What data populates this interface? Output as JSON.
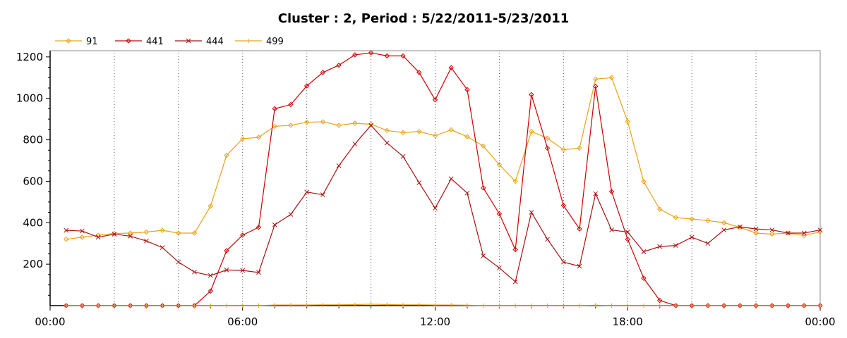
{
  "chart_data": {
    "type": "line",
    "title": "Cluster : 2, Period : 5/22/2011-5/23/2011",
    "xlabel": "",
    "ylabel": "",
    "xlim": [
      0,
      24
    ],
    "ylim": [
      0,
      1230
    ],
    "x_tick_labels": [
      "00:00",
      "06:00",
      "12:00",
      "18:00",
      "00:00"
    ],
    "y_tick_values": [
      200,
      400,
      600,
      800,
      1000,
      1200
    ],
    "y_tick_labels": [
      "200",
      "400",
      "600",
      "800",
      "1000",
      "1200"
    ],
    "grid": "vertical dotted lines every 2 hours",
    "legend_position": "top-left",
    "x": [
      0.5,
      1.0,
      1.5,
      2.0,
      2.5,
      3.0,
      3.5,
      4.0,
      4.5,
      5.0,
      5.5,
      6.0,
      6.5,
      7.0,
      7.5,
      8.0,
      8.5,
      9.0,
      9.5,
      10.0,
      10.5,
      11.0,
      11.5,
      12.0,
      12.5,
      13.0,
      13.5,
      14.0,
      14.5,
      15.0,
      15.5,
      16.0,
      16.5,
      17.0,
      17.5,
      18.0,
      18.5,
      19.0,
      19.5,
      20.0,
      20.5,
      21.0,
      21.5,
      22.0,
      22.5,
      23.0,
      23.5,
      24.0
    ],
    "series": [
      {
        "name": "91",
        "color": "#e8a317",
        "marker": "diamond",
        "values": [
          320,
          330,
          340,
          348,
          350,
          355,
          363,
          350,
          350,
          480,
          725,
          805,
          812,
          865,
          870,
          885,
          887,
          870,
          880,
          875,
          845,
          835,
          840,
          820,
          848,
          815,
          770,
          680,
          600,
          840,
          808,
          752,
          760,
          1093,
          1100,
          888,
          598,
          465,
          425,
          418,
          410,
          400,
          378,
          350,
          345,
          350,
          338,
          356
        ]
      },
      {
        "name": "441",
        "color": "#cc0000",
        "marker": "diamond",
        "values": [
          0,
          0,
          0,
          0,
          0,
          0,
          0,
          0,
          0,
          70,
          265,
          340,
          378,
          950,
          970,
          1060,
          1125,
          1160,
          1210,
          1220,
          1205,
          1205,
          1125,
          993,
          1148,
          1042,
          568,
          443,
          270,
          1018,
          760,
          483,
          370,
          1058,
          550,
          320,
          132,
          25,
          0,
          0,
          0,
          0,
          0,
          0,
          0,
          0,
          0,
          0
        ]
      },
      {
        "name": "444",
        "color": "#aa1111",
        "marker": "x",
        "values": [
          363,
          360,
          330,
          345,
          335,
          312,
          280,
          210,
          162,
          145,
          172,
          170,
          160,
          390,
          440,
          548,
          535,
          675,
          780,
          870,
          785,
          720,
          593,
          470,
          612,
          543,
          240,
          182,
          115,
          450,
          320,
          210,
          190,
          540,
          365,
          355,
          260,
          285,
          290,
          330,
          300,
          365,
          380,
          370,
          365,
          350,
          350,
          365
        ]
      },
      {
        "name": "499",
        "color": "#e8a317",
        "marker": "plus",
        "values": [
          0,
          0,
          0,
          0,
          0,
          0,
          0,
          0,
          0,
          0,
          0,
          0,
          0,
          3,
          3,
          3,
          4,
          4,
          5,
          7,
          5,
          4,
          4,
          3,
          3,
          2,
          0,
          0,
          0,
          0,
          0,
          0,
          0,
          2,
          0,
          0,
          0,
          0,
          0,
          0,
          0,
          0,
          0,
          0,
          0,
          0,
          0,
          0
        ]
      }
    ]
  }
}
